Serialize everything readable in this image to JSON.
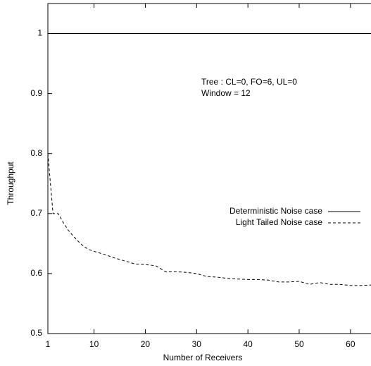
{
  "chart_data": {
    "type": "line",
    "xlabel": "Number of Receivers",
    "ylabel": "Throughput",
    "annotations": [
      "Tree : CL=0, FO=6, UL=0",
      "Window = 12"
    ],
    "xlim": [
      1,
      64
    ],
    "ylim": [
      0.5,
      1.05
    ],
    "xticks": [
      1,
      10,
      20,
      30,
      40,
      50,
      60
    ],
    "yticks": [
      0.5,
      0.6,
      0.7,
      0.8,
      0.9,
      1
    ],
    "legend": "right",
    "series": [
      {
        "name": "Deterministic Noise case",
        "color": "#000000",
        "dash": "none",
        "x": [
          1,
          64
        ],
        "values": [
          1,
          1
        ]
      },
      {
        "name": "Light Tailed Noise case",
        "color": "#000000",
        "dash": "4,3",
        "x": [
          1,
          2,
          3,
          4,
          5,
          6,
          7,
          8,
          9,
          10,
          12,
          14,
          16,
          18,
          20,
          22,
          24,
          26,
          28,
          30,
          32,
          34,
          36,
          38,
          40,
          42,
          44,
          46,
          48,
          50,
          52,
          54,
          56,
          58,
          60,
          62,
          64
        ],
        "values": [
          0.8,
          0.7,
          0.7,
          0.685,
          0.672,
          0.662,
          0.653,
          0.645,
          0.64,
          0.637,
          0.632,
          0.626,
          0.621,
          0.616,
          0.615,
          0.613,
          0.603,
          0.603,
          0.602,
          0.6,
          0.595,
          0.594,
          0.592,
          0.591,
          0.59,
          0.59,
          0.589,
          0.586,
          0.586,
          0.587,
          0.582,
          0.585,
          0.582,
          0.582,
          0.58,
          0.58,
          0.581
        ]
      }
    ]
  }
}
